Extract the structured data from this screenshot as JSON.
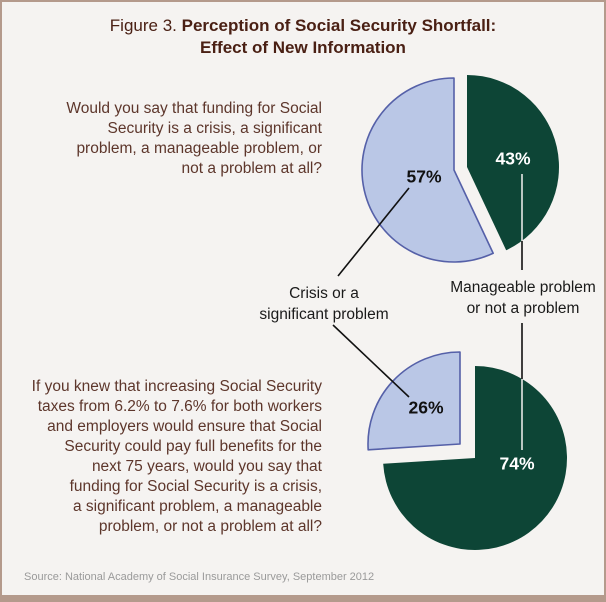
{
  "title": {
    "figure_label": "Figure 3.",
    "bold_text": "Perception of Social Security Shortfall:",
    "line2": "Effect of New Information"
  },
  "chart_data": {
    "type": "pie",
    "charts": [
      {
        "question": "Would you say that funding for Social\nSecurity is a crisis, a significant\nproblem, a manageable problem, or\nnot a problem at all?",
        "slices": [
          {
            "label": "Manageable problem or not a problem",
            "value": 43,
            "color": "#0d4536",
            "label_color": "#ffffff",
            "exploded": true
          },
          {
            "label": "Crisis or a significant problem",
            "value": 57,
            "color": "#bac7e6",
            "stroke": "#5560a8",
            "label_color": "#111111",
            "exploded": false
          }
        ]
      },
      {
        "question": "If you knew that increasing Social Security\ntaxes from 6.2% to 7.6% for both workers\nand employers would ensure that Social\nSecurity could pay full benefits for the\nnext 75 years, would you say that\nfunding for Social Security is a crisis,\na significant problem, a manageable\nproblem, or not a problem at all?",
        "slices": [
          {
            "label": "Manageable problem or not a problem",
            "value": 74,
            "color": "#0d4536",
            "label_color": "#ffffff",
            "exploded": false
          },
          {
            "label": "Crisis or a significant problem",
            "value": 26,
            "color": "#bac7e6",
            "stroke": "#5560a8",
            "label_color": "#111111",
            "exploded": true
          }
        ]
      }
    ],
    "callout_labels": {
      "crisis": "Crisis or a\nsignificant problem",
      "manageable": "Manageable problem\nor not a problem"
    },
    "percent_suffix": "%"
  },
  "source": "Source: National Academy of Social Insurance Survey, September 2012"
}
